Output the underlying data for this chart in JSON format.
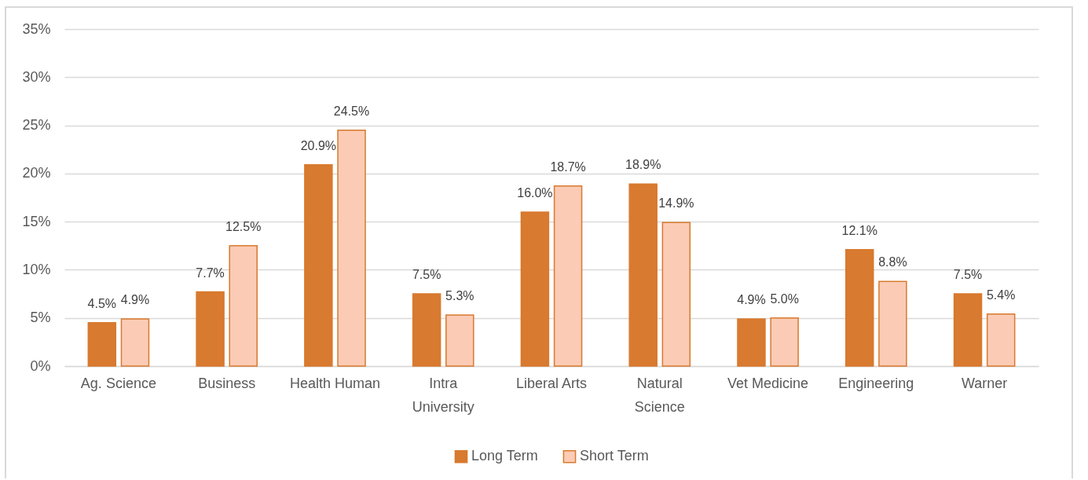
{
  "chart_data": {
    "type": "bar",
    "categories": [
      "Ag. Science",
      "Business",
      "Health Human",
      "Intra University",
      "Liberal Arts",
      "Natural Science",
      "Vet Medicine",
      "Engineering",
      "Warner"
    ],
    "series": [
      {
        "name": "Long Term",
        "color": "#d87a2f",
        "values": [
          4.5,
          7.7,
          20.9,
          7.5,
          16.0,
          18.9,
          4.9,
          12.1,
          7.5
        ],
        "value_labels": [
          "4.5%",
          "7.7%",
          "20.9%",
          "7.5%",
          "16.0%",
          "18.9%",
          "4.9%",
          "12.1%",
          "7.5%"
        ]
      },
      {
        "name": "Short Term",
        "color": "#fbcbb5",
        "values": [
          4.9,
          12.5,
          24.5,
          5.3,
          18.7,
          14.9,
          5.0,
          8.8,
          5.4
        ],
        "value_labels": [
          "4.9%",
          "12.5%",
          "24.5%",
          "5.3%",
          "18.7%",
          "14.9%",
          "5.0%",
          "8.8%",
          "5.4%"
        ]
      }
    ],
    "ylim": [
      0,
      35
    ],
    "yticks": [
      {
        "value": 0,
        "label": "0%"
      },
      {
        "value": 5,
        "label": "5%"
      },
      {
        "value": 10,
        "label": "10%"
      },
      {
        "value": 15,
        "label": "15%"
      },
      {
        "value": 20,
        "label": "20%"
      },
      {
        "value": 25,
        "label": "25%"
      },
      {
        "value": 30,
        "label": "30%"
      },
      {
        "value": 35,
        "label": "35%"
      }
    ],
    "grid": "y",
    "legend": "bottom"
  }
}
